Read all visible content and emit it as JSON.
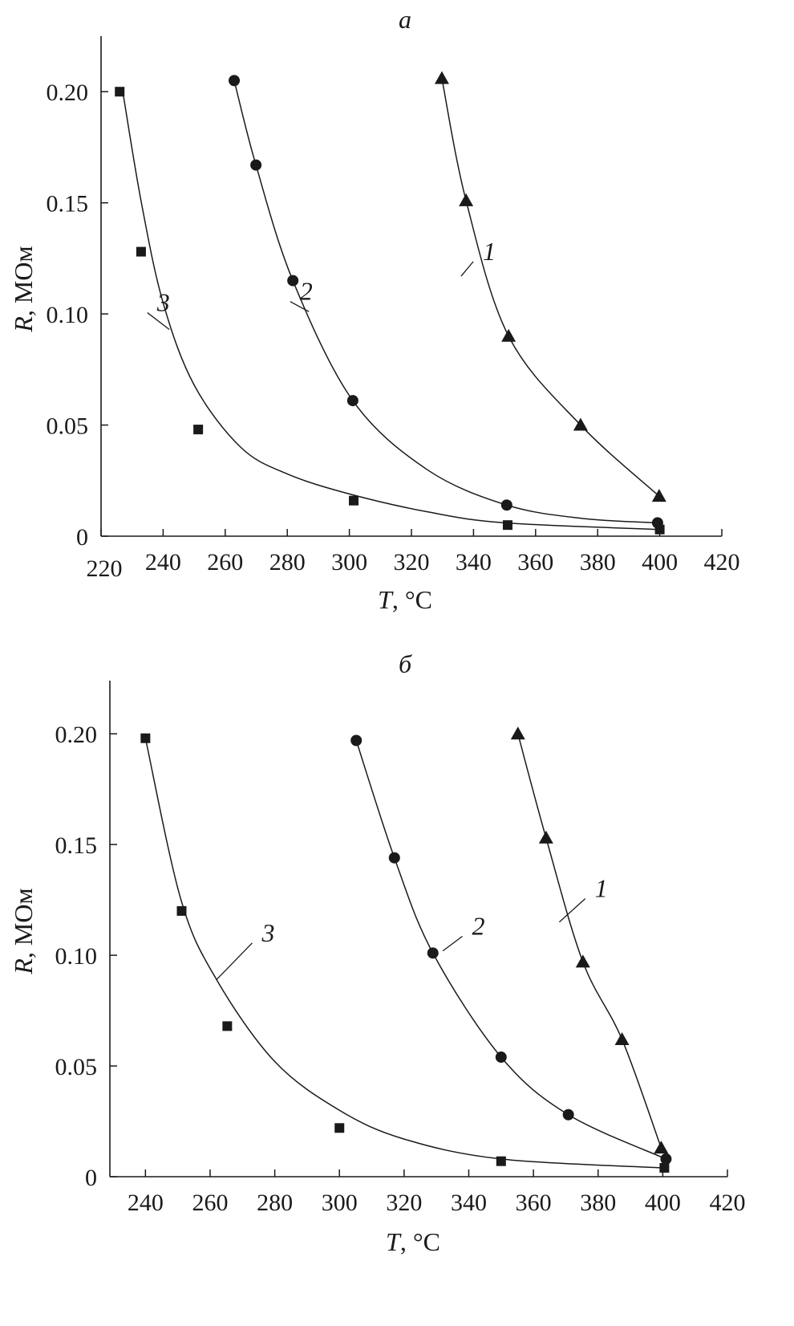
{
  "chart_data": [
    {
      "type": "scatter",
      "title": "а",
      "xlabel_var": "T",
      "xlabel_unit": ", °C",
      "ylabel_var": "R",
      "ylabel_unit": ", МОм",
      "xlim": [
        220,
        420
      ],
      "ylim": [
        0,
        0.225
      ],
      "xticks": [
        220,
        240,
        260,
        280,
        300,
        320,
        340,
        360,
        380,
        400,
        420
      ],
      "xtick_labels": [
        "220",
        "240",
        "260",
        "280",
        "300",
        "320",
        "340",
        "360",
        "380",
        "400",
        "420"
      ],
      "yticks": [
        0,
        0.05,
        0.1,
        0.15,
        0.2
      ],
      "ytick_labels": [
        "0",
        "0.05",
        "0.10",
        "0.15",
        "0.20"
      ],
      "grid": false,
      "series": [
        {
          "name": "1",
          "marker": "triangle",
          "x": [
            329.8,
            337.6,
            351.3,
            374.5,
            399.8
          ],
          "y": [
            0.206,
            0.151,
            0.09,
            0.05,
            0.018
          ],
          "curve": [
            [
              329.8,
              0.206
            ],
            [
              337.6,
              0.151
            ],
            [
              351.3,
              0.09
            ],
            [
              374.5,
              0.05
            ],
            [
              399.8,
              0.018
            ]
          ],
          "label_at": [
            342,
            0.125
          ],
          "leader_to": [
            336,
            0.117
          ]
        },
        {
          "name": "2",
          "marker": "circle",
          "x": [
            262.9,
            269.9,
            281.8,
            301.1,
            350.7,
            399.3
          ],
          "y": [
            0.205,
            0.167,
            0.115,
            0.061,
            0.014,
            0.006
          ],
          "curve": [
            [
              262.9,
              0.205
            ],
            [
              269.9,
              0.167
            ],
            [
              281.8,
              0.115
            ],
            [
              301.1,
              0.061
            ],
            [
              325,
              0.03
            ],
            [
              350.7,
              0.014
            ],
            [
              375,
              0.008
            ],
            [
              399.3,
              0.006
            ]
          ],
          "label_at": [
            283,
            0.107
          ],
          "leader_to": [
            287,
            0.101
          ]
        },
        {
          "name": "3",
          "marker": "square",
          "x": [
            226.0,
            232.9,
            251.3,
            301.4,
            351.0,
            400.0
          ],
          "y": [
            0.2,
            0.128,
            0.048,
            0.016,
            0.005,
            0.003
          ],
          "curve": [
            [
              227,
              0.2
            ],
            [
              233,
              0.15
            ],
            [
              240,
              0.105
            ],
            [
              250,
              0.068
            ],
            [
              265,
              0.04
            ],
            [
              280,
              0.028
            ],
            [
              300,
              0.019
            ],
            [
              325,
              0.011
            ],
            [
              350,
              0.006
            ],
            [
              400,
              0.003
            ]
          ],
          "label_at": [
            237,
            0.102
          ],
          "leader_to": [
            242,
            0.093
          ]
        }
      ]
    },
    {
      "type": "scatter",
      "title": "б",
      "xlabel_var": "T",
      "xlabel_unit": ", °C",
      "ylabel_var": "R",
      "ylabel_unit": ", МОм",
      "xlim": [
        229,
        420
      ],
      "ylim": [
        0,
        0.224
      ],
      "xticks": [
        240,
        260,
        280,
        300,
        320,
        340,
        360,
        380,
        400,
        420
      ],
      "xtick_labels": [
        "240",
        "260",
        "280",
        "300",
        "320",
        "340",
        "360",
        "380",
        "400",
        "420"
      ],
      "yticks": [
        0,
        0.05,
        0.1,
        0.15,
        0.2
      ],
      "ytick_labels": [
        "0",
        "0.05",
        "0.10",
        "0.15",
        "0.20"
      ],
      "grid": false,
      "series": [
        {
          "name": "1",
          "marker": "triangle",
          "x": [
            355.2,
            363.9,
            375.3,
            387.4,
            399.5
          ],
          "y": [
            0.2,
            0.153,
            0.097,
            0.062,
            0.013
          ],
          "curve": [
            [
              355.2,
              0.2
            ],
            [
              363.9,
              0.153
            ],
            [
              375.3,
              0.097
            ],
            [
              387.4,
              0.062
            ],
            [
              399.5,
              0.013
            ]
          ],
          "label_at": [
            378,
            0.127
          ],
          "leader_to": [
            368,
            0.115
          ]
        },
        {
          "name": "2",
          "marker": "circle",
          "x": [
            305.2,
            317.0,
            328.9,
            350.0,
            370.8,
            401.0
          ],
          "y": [
            0.197,
            0.144,
            0.101,
            0.054,
            0.028,
            0.008
          ],
          "curve": [
            [
              305.2,
              0.197
            ],
            [
              317.0,
              0.144
            ],
            [
              328.9,
              0.101
            ],
            [
              350.0,
              0.054
            ],
            [
              370.8,
              0.028
            ],
            [
              401.0,
              0.008
            ]
          ],
          "label_at": [
            340,
            0.11
          ],
          "leader_to": [
            332,
            0.102
          ]
        },
        {
          "name": "3",
          "marker": "square",
          "x": [
            240.0,
            251.2,
            265.3,
            300.0,
            350.0,
            400.5
          ],
          "y": [
            0.198,
            0.12,
            0.068,
            0.022,
            0.007,
            0.004
          ],
          "curve": [
            [
              240,
              0.198
            ],
            [
              251,
              0.125
            ],
            [
              262,
              0.089
            ],
            [
              280,
              0.052
            ],
            [
              300,
              0.03
            ],
            [
              320,
              0.017
            ],
            [
              350,
              0.008
            ],
            [
              400,
              0.004
            ]
          ],
          "label_at": [
            275,
            0.107
          ],
          "leader_to": [
            262,
            0.089
          ]
        }
      ]
    }
  ]
}
